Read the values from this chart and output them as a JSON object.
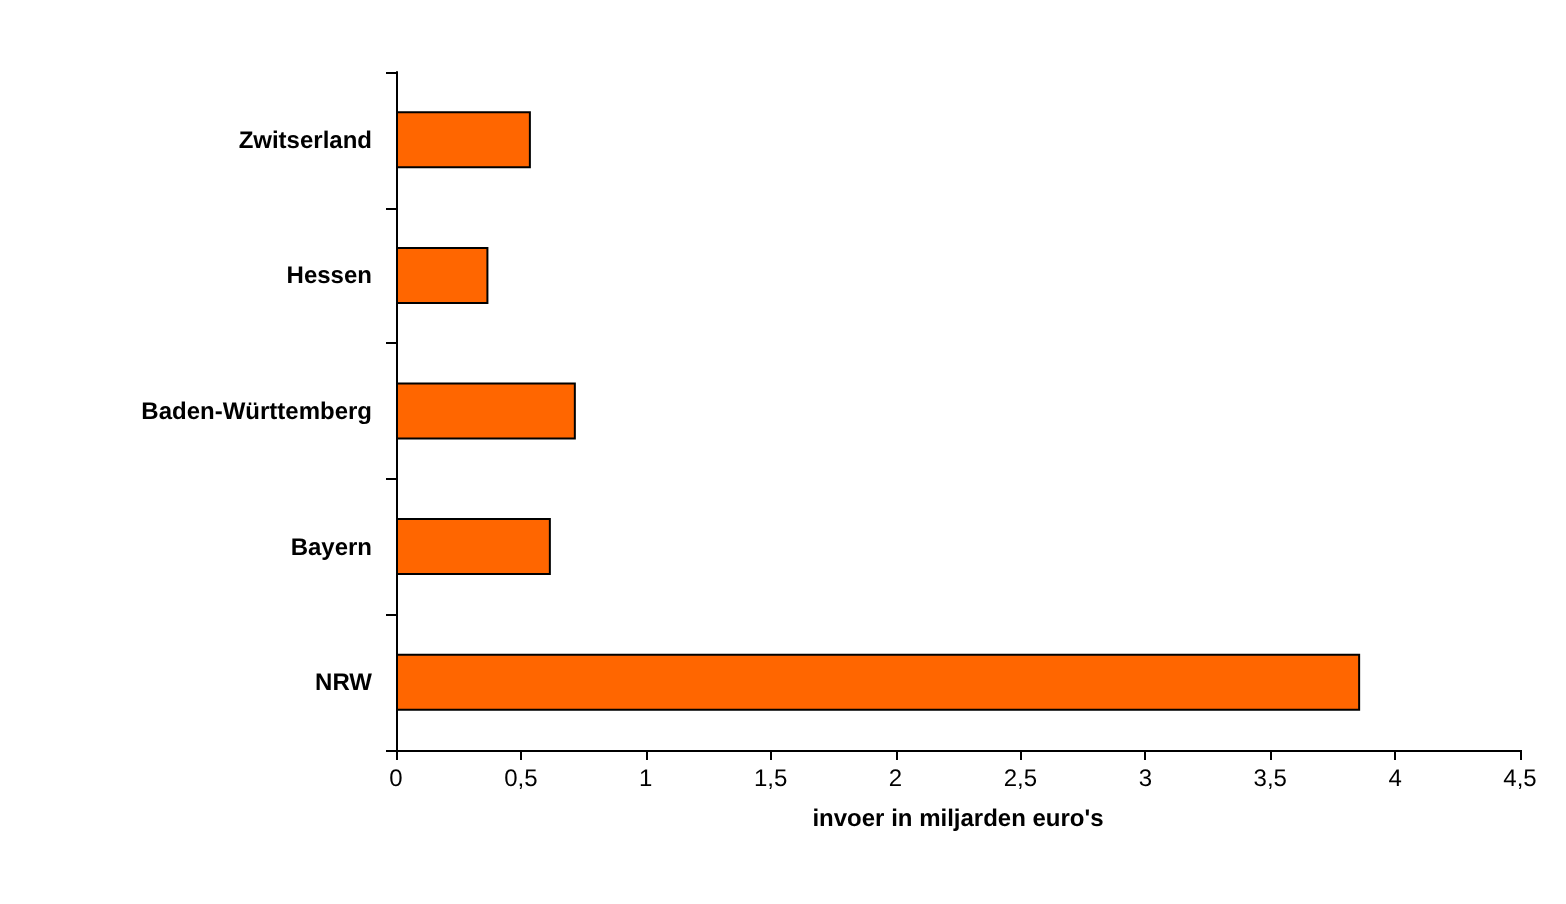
{
  "chart_data": {
    "type": "bar",
    "orientation": "horizontal",
    "xlabel": "invoer in miljarden euro's",
    "categories": [
      "Zwitserland",
      "Hessen",
      "Baden-Württemberg",
      "Bayern",
      "NRW"
    ],
    "values": [
      0.54,
      0.37,
      0.72,
      0.62,
      3.86
    ],
    "color": "#ff6600",
    "xlim": [
      0,
      4.5
    ],
    "xticks": [
      0,
      {
        "value": 0.5,
        "label": "0,5"
      },
      1,
      {
        "value": 1.5,
        "label": "1,5"
      },
      2,
      {
        "value": 2.5,
        "label": "2,5"
      },
      3,
      {
        "value": 3.5,
        "label": "3,5"
      },
      4,
      {
        "value": 4.5,
        "label": "4,5"
      }
    ],
    "grid": false
  }
}
